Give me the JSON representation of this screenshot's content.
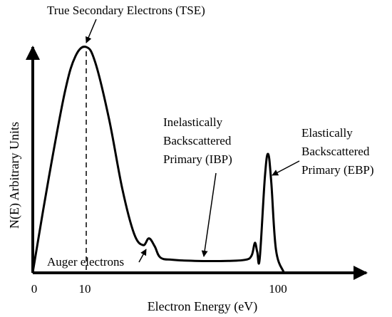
{
  "chart_data": {
    "type": "line",
    "xlabel": "Electron Energy (eV)",
    "ylabel": "N(E) Arbitrary Units",
    "x_ticks": [
      {
        "value": 0,
        "label": "0"
      },
      {
        "value": 10,
        "label": "10"
      },
      {
        "value": 100,
        "label": "100"
      }
    ],
    "series": [
      {
        "points": [
          [
            0,
            0.0
          ],
          [
            3,
            0.42
          ],
          [
            6,
            0.8
          ],
          [
            8,
            0.96
          ],
          [
            10,
            1.0
          ],
          [
            12,
            0.93
          ],
          [
            15,
            0.68
          ],
          [
            18,
            0.37
          ],
          [
            21,
            0.17
          ],
          [
            24,
            0.12
          ],
          [
            26,
            0.15
          ],
          [
            28,
            0.115
          ],
          [
            30,
            0.065
          ],
          [
            35,
            0.055
          ],
          [
            45,
            0.05
          ],
          [
            60,
            0.05
          ],
          [
            72,
            0.055
          ],
          [
            76,
            0.075
          ],
          [
            78,
            0.13
          ],
          [
            79.5,
            0.09
          ],
          [
            81,
            0.06
          ],
          [
            84,
            0.42
          ],
          [
            86,
            0.525
          ],
          [
            88,
            0.4
          ],
          [
            90.5,
            0.1
          ],
          [
            93,
            0.0
          ]
        ]
      }
    ],
    "annotations": {
      "tse": {
        "lines": [
          "True Secondary Electrons (TSE)"
        ]
      },
      "ibp": {
        "lines": [
          "Inelastically",
          "Backscattered",
          "Primary (IBP)"
        ]
      },
      "ebp": {
        "lines": [
          "Elastically",
          "Backscattered",
          "Primary (EBP)"
        ]
      },
      "auger": {
        "lines": [
          "Auger electrons"
        ]
      }
    }
  }
}
